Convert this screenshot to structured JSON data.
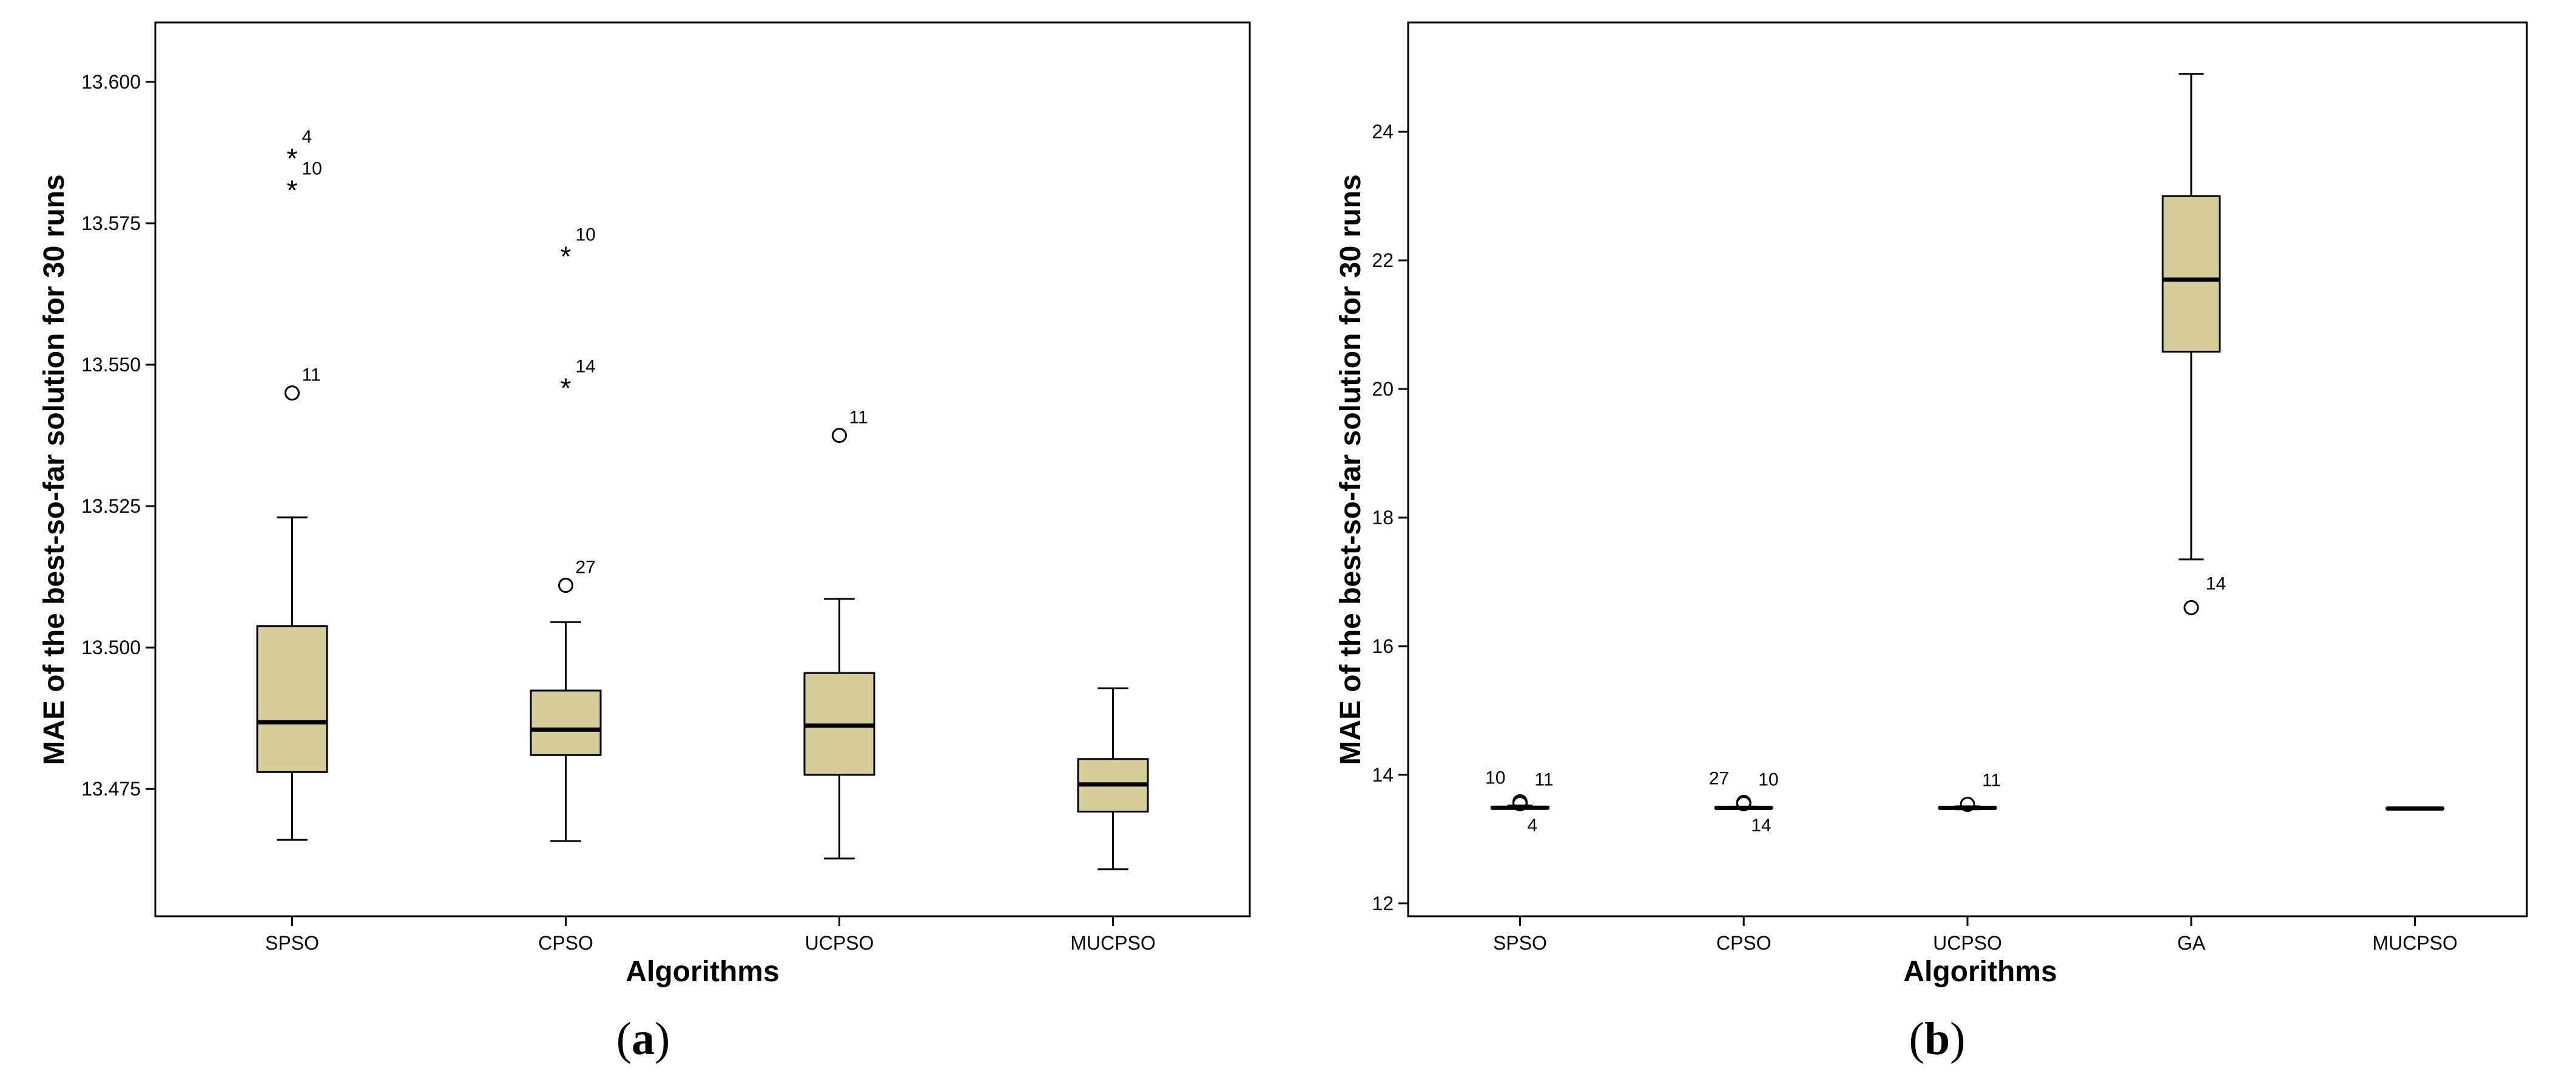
{
  "colors": {
    "box_fill": "#d6cf9c",
    "stroke": "#000000",
    "background": "#ffffff"
  },
  "chart_data": [
    {
      "panel_label": "a",
      "type": "boxplot",
      "xlabel": "Algorithms",
      "ylabel": "MAE of the best-so-far solution for 30 runs",
      "ylim": [
        13.4525,
        13.6105
      ],
      "yticks": [
        "13.475",
        "13.500",
        "13.525",
        "13.550",
        "13.575",
        "13.600"
      ],
      "categories": [
        "SPSO",
        "CPSO",
        "UCPSO",
        "MUCPSO"
      ],
      "boxes": [
        {
          "category": "SPSO",
          "whisker_low": 13.466,
          "q1": 13.478,
          "median": 13.4868,
          "q3": 13.5038,
          "whisker_high": 13.523,
          "outliers": [
            {
              "value": 13.5871,
              "marker": "star",
              "label": "4"
            },
            {
              "value": 13.5815,
              "marker": "star",
              "label": "10"
            },
            {
              "value": 13.545,
              "marker": "circle",
              "label": "11"
            }
          ]
        },
        {
          "category": "CPSO",
          "whisker_low": 13.4658,
          "q1": 13.481,
          "median": 13.4855,
          "q3": 13.4924,
          "whisker_high": 13.5045,
          "outliers": [
            {
              "value": 13.5698,
              "marker": "star",
              "label": "10"
            },
            {
              "value": 13.5465,
              "marker": "star",
              "label": "14"
            },
            {
              "value": 13.511,
              "marker": "circle",
              "label": "27"
            }
          ]
        },
        {
          "category": "UCPSO",
          "whisker_low": 13.4627,
          "q1": 13.4775,
          "median": 13.4862,
          "q3": 13.4955,
          "whisker_high": 13.5086,
          "outliers": [
            {
              "value": 13.5375,
              "marker": "circle",
              "label": "11"
            }
          ]
        },
        {
          "category": "MUCPSO",
          "whisker_low": 13.4608,
          "q1": 13.471,
          "median": 13.4758,
          "q3": 13.4803,
          "whisker_high": 13.4928,
          "outliers": []
        }
      ]
    },
    {
      "panel_label": "b",
      "type": "boxplot",
      "xlabel": "Algorithms",
      "ylabel": "MAE of the best-so-far solution for 30 runs",
      "ylim": [
        11.8,
        25.7
      ],
      "yticks": [
        "12",
        "14",
        "16",
        "18",
        "20",
        "22",
        "24"
      ],
      "categories": [
        "SPSO",
        "CPSO",
        "UCPSO",
        "GA",
        "MUCPSO"
      ],
      "boxes": [
        {
          "category": "SPSO",
          "whisker_low": 13.47,
          "q1": 13.478,
          "median": 13.487,
          "q3": 13.504,
          "whisker_high": 13.523,
          "outliers": [
            {
              "value": 13.58,
              "marker": "circle",
              "label": "10",
              "label_pos": "above-left"
            },
            {
              "value": 13.55,
              "marker": "circle",
              "label": "11",
              "label_pos": "above-right"
            },
            {
              "value": 13.5,
              "marker": "none",
              "label": "4",
              "label_pos": "below-right"
            }
          ]
        },
        {
          "category": "CPSO",
          "whisker_low": 13.47,
          "q1": 13.481,
          "median": 13.486,
          "q3": 13.492,
          "whisker_high": 13.505,
          "outliers": [
            {
              "value": 13.57,
              "marker": "circle",
              "label": "27",
              "label_pos": "above-left"
            },
            {
              "value": 13.55,
              "marker": "circle",
              "label": "10",
              "label_pos": "above-right"
            },
            {
              "value": 13.5,
              "marker": "none",
              "label": "14",
              "label_pos": "below-right"
            }
          ]
        },
        {
          "category": "UCPSO",
          "whisker_low": 13.463,
          "q1": 13.478,
          "median": 13.486,
          "q3": 13.496,
          "whisker_high": 13.509,
          "outliers": [
            {
              "value": 13.54,
              "marker": "circle",
              "label": "11",
              "label_pos": "above-right"
            }
          ]
        },
        {
          "category": "GA",
          "whisker_low": 17.35,
          "q1": 20.58,
          "median": 21.7,
          "q3": 23.0,
          "whisker_high": 24.9,
          "outliers": [
            {
              "value": 16.6,
              "marker": "circle",
              "label": "14",
              "label_pos": "above-right"
            }
          ]
        },
        {
          "category": "MUCPSO",
          "whisker_low": 13.461,
          "q1": 13.471,
          "median": 13.476,
          "q3": 13.48,
          "whisker_high": 13.493,
          "outliers": []
        }
      ]
    }
  ]
}
